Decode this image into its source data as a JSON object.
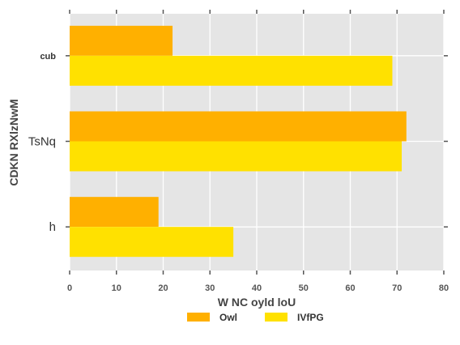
{
  "chart_data": {
    "type": "bar",
    "orientation": "horizontal",
    "categories": [
      "cub",
      "TsNq",
      "h"
    ],
    "series": [
      {
        "name": "Owl",
        "values": [
          22,
          72,
          19
        ],
        "color": "#ffb000"
      },
      {
        "name": "IVfPG",
        "values": [
          69,
          71,
          35
        ],
        "color": "#ffe100"
      }
    ],
    "xlabel": "W NC oyld loU",
    "ylabel": "CDKN RXlzNwM",
    "xlim": [
      0,
      80
    ],
    "xticks": [
      0,
      10,
      20,
      30,
      40,
      50,
      60,
      70,
      80
    ],
    "grid": true,
    "legend_position": "bottom"
  },
  "colors": {
    "plot_background": "#e5e5e5",
    "grid": "#ffffff"
  }
}
